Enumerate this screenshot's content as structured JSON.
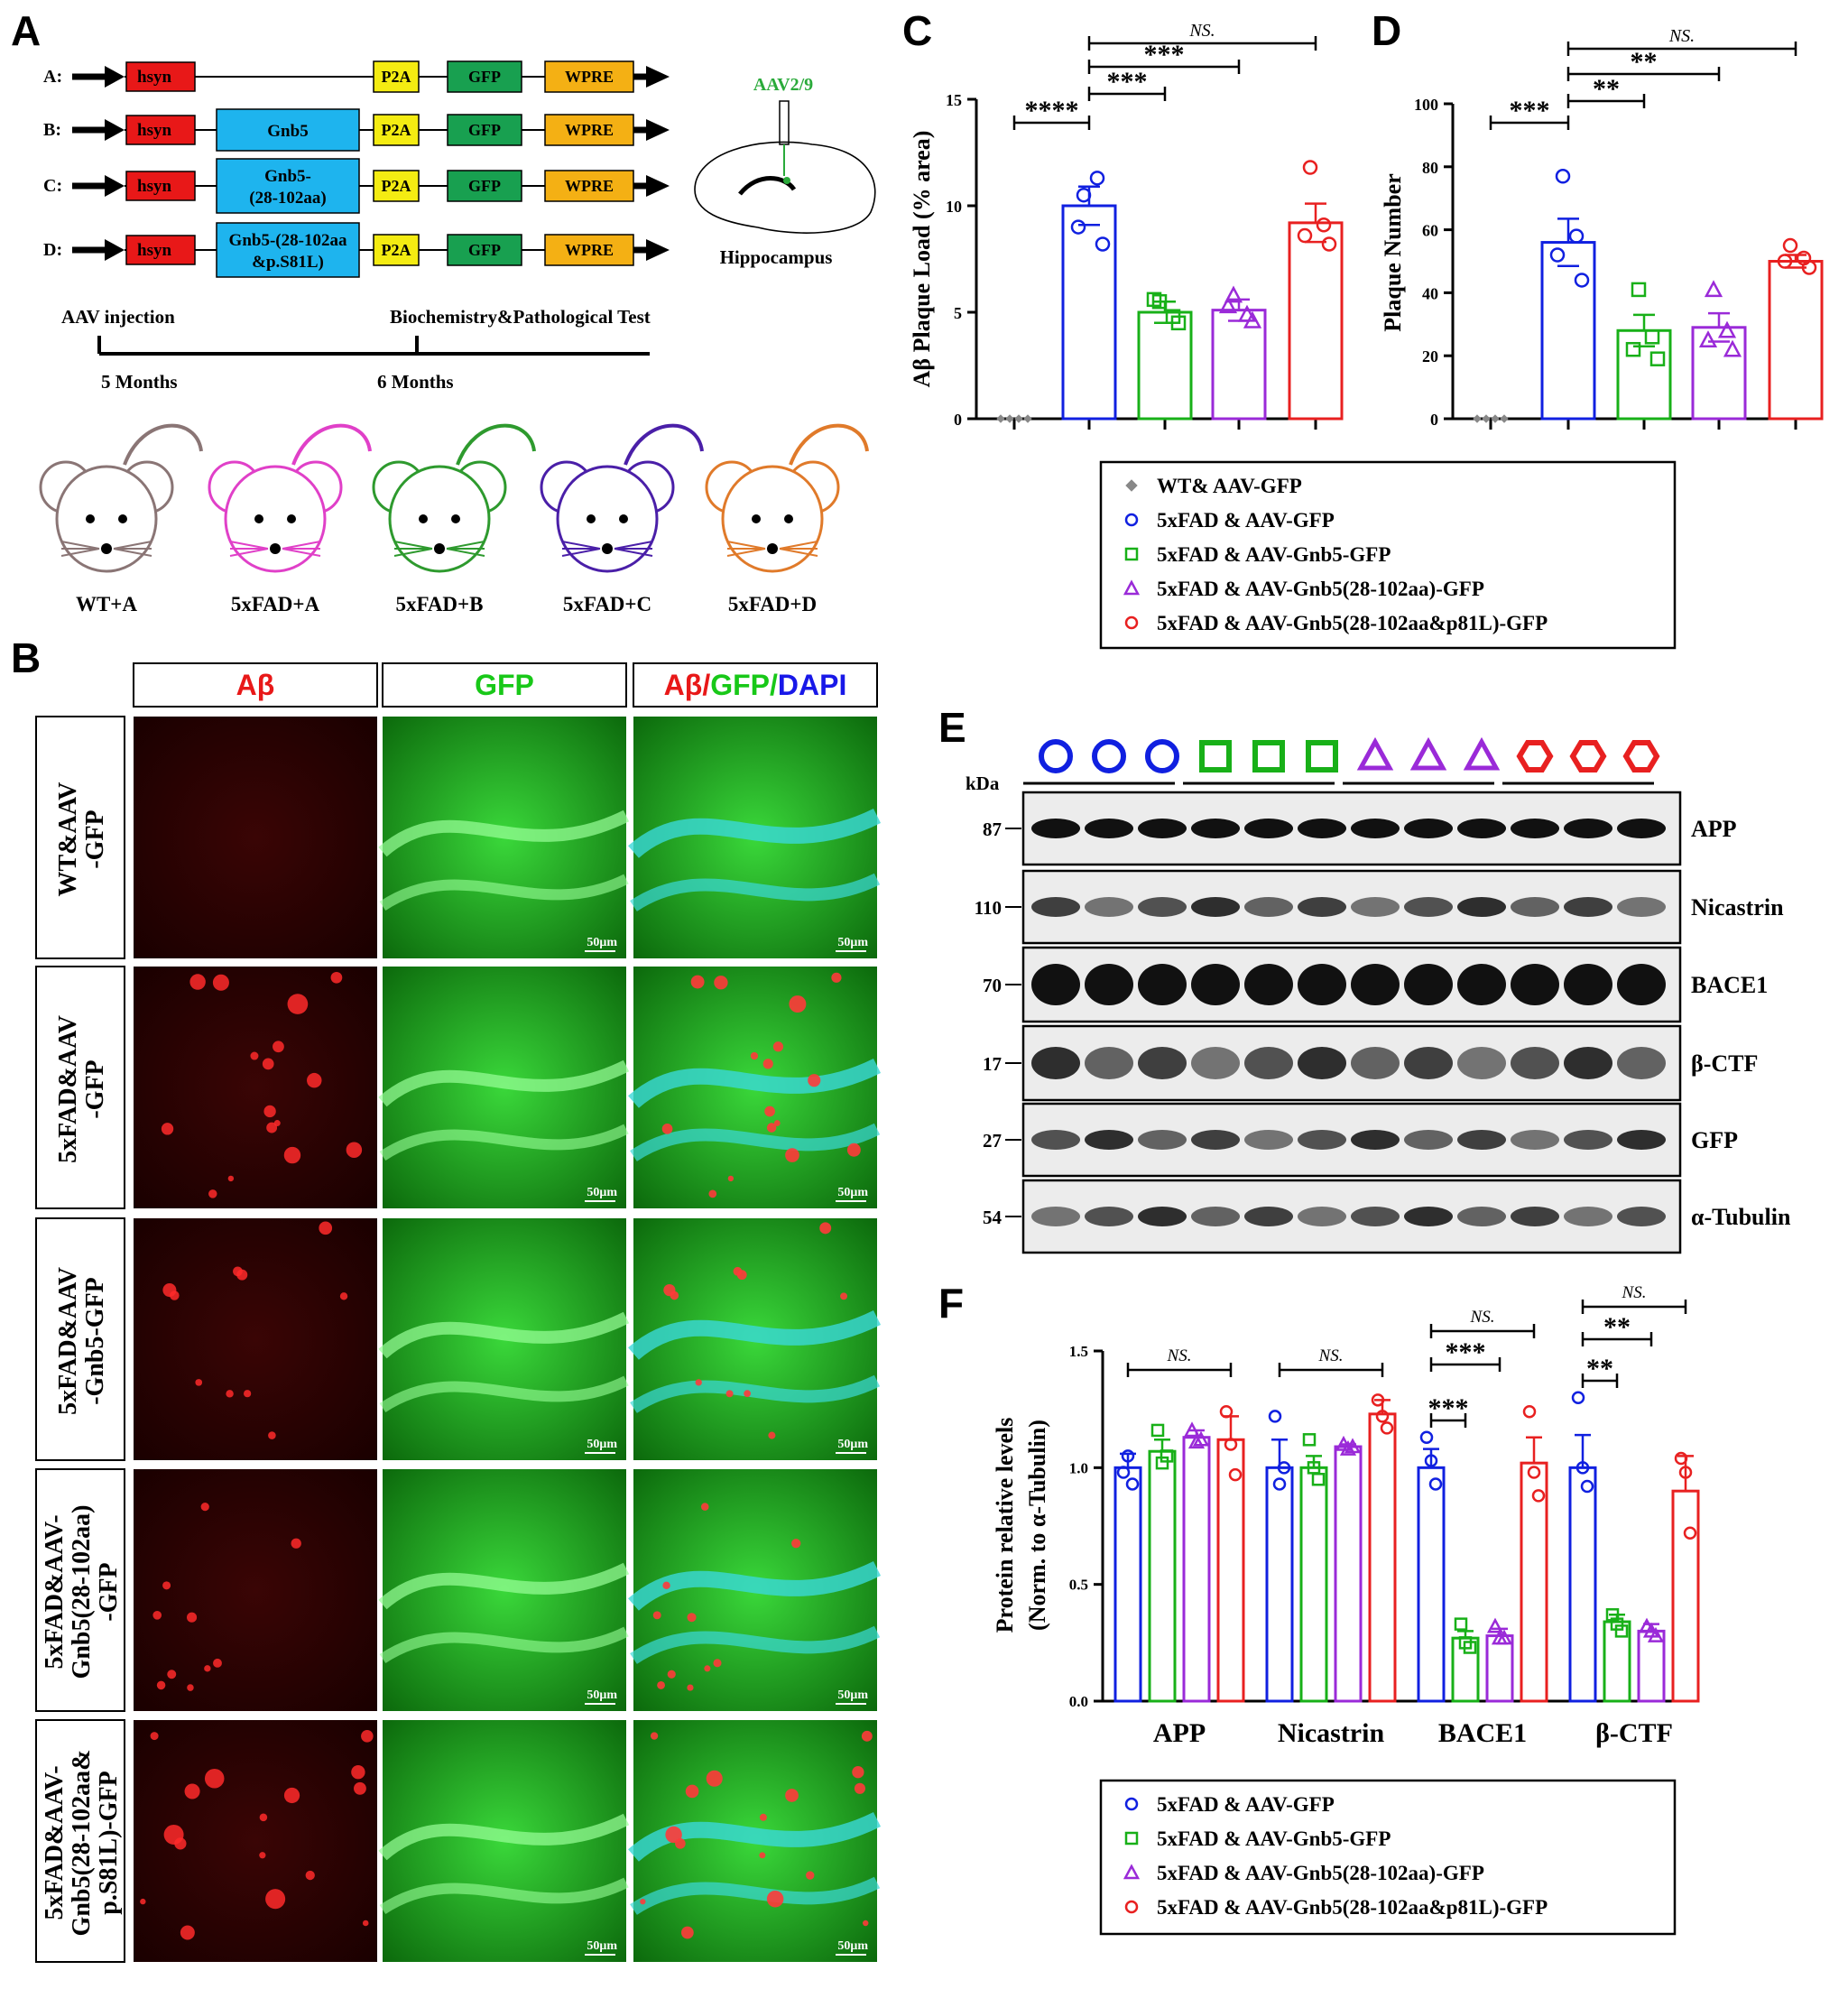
{
  "panels": {
    "A": "A",
    "B": "B",
    "C": "C",
    "D": "D",
    "E": "E",
    "F": "F"
  },
  "constructs": [
    {
      "label": "A:",
      "insert": "",
      "p2a": "P2A",
      "gfp": "GFP",
      "wpre": "WPRE",
      "hsyn": "hsyn"
    },
    {
      "label": "B:",
      "insert": "Gnb5",
      "p2a": "P2A",
      "gfp": "GFP",
      "wpre": "WPRE",
      "hsyn": "hsyn"
    },
    {
      "label": "C:",
      "insert": "Gnb5-\n(28-102aa)",
      "p2a": "P2A",
      "gfp": "GFP",
      "wpre": "WPRE",
      "hsyn": "hsyn"
    },
    {
      "label": "D:",
      "insert": "Gnb5-(28-102aa\n&p.S81L)",
      "p2a": "P2A",
      "gfp": "GFP",
      "wpre": "WPRE",
      "hsyn": "hsyn"
    }
  ],
  "aav_label": "AAV2/9",
  "hippocampus_label": "Hippocampus",
  "timeline": {
    "start": "AAV injection",
    "end": "Biochemistry&Pathological Test",
    "t1": "5 Months",
    "t2": "6 Months"
  },
  "mice": [
    {
      "label": "WT+A",
      "color": "#8a7575"
    },
    {
      "label": "5xFAD+A",
      "color": "#e040c8"
    },
    {
      "label": "5xFAD+B",
      "color": "#2e9a2e"
    },
    {
      "label": "5xFAD+C",
      "color": "#4a1fa8"
    },
    {
      "label": "5xFAD+D",
      "color": "#e07a2a"
    }
  ],
  "micro": {
    "col_headers": [
      "Aβ",
      "GFP",
      "Aβ/GFP/DAPI"
    ],
    "row_labels": [
      "WT&AAV\n-GFP",
      "5xFAD&AAV\n-GFP",
      "5xFAD&AAV\n-Gnb5-GFP",
      "5xFAD&AAV-\nGnb5(28-102aa)\n-GFP",
      "5xFAD&AAV-\nGnb5(28-102aa&\np.S81L)-GFP"
    ],
    "scale_bar": "50μm"
  },
  "legend_c": [
    {
      "text": "WT& AAV-GFP",
      "marker": "diamond",
      "color": "#888888"
    },
    {
      "text": "5xFAD & AAV-GFP",
      "marker": "circle",
      "color": "#1020e0"
    },
    {
      "text": "5xFAD & AAV-Gnb5-GFP",
      "marker": "square",
      "color": "#18b018"
    },
    {
      "text": "5xFAD & AAV-Gnb5(28-102aa)-GFP",
      "marker": "triangle",
      "color": "#9a2ad8"
    },
    {
      "text": "5xFAD & AAV-Gnb5(28-102aa&p81L)-GFP",
      "marker": "circle",
      "color": "#e82020"
    }
  ],
  "legend_f": [
    {
      "text": "5xFAD & AAV-GFP",
      "marker": "circle",
      "color": "#1020e0"
    },
    {
      "text": "5xFAD & AAV-Gnb5-GFP",
      "marker": "square",
      "color": "#18b018"
    },
    {
      "text": "5xFAD & AAV-Gnb5(28-102aa)-GFP",
      "marker": "triangle",
      "color": "#9a2ad8"
    },
    {
      "text": "5xFAD & AAV-Gnb5(28-102aa&p81L)-GFP",
      "marker": "circle",
      "color": "#e82020"
    }
  ],
  "western": {
    "kda_label": "kDa",
    "rows": [
      {
        "kda": "87",
        "name": "APP"
      },
      {
        "kda": "110",
        "name": "Nicastrin"
      },
      {
        "kda": "70",
        "name": "BACE1"
      },
      {
        "kda": "17",
        "name": "β-CTF"
      },
      {
        "kda": "27",
        "name": "GFP"
      },
      {
        "kda": "54",
        "name": "α-Tubulin"
      }
    ]
  },
  "chart_data": [
    {
      "id": "C",
      "type": "bar",
      "ylabel": "Aβ Plaque Load (% area)",
      "ylim": [
        0,
        15
      ],
      "yticks": [
        "0",
        "5",
        "10",
        "15"
      ],
      "colors": [
        "#888888",
        "#1020e0",
        "#18b018",
        "#9a2ad8",
        "#e82020"
      ],
      "values": [
        0,
        10,
        5,
        5.1,
        9.2
      ],
      "errors": [
        0,
        0.9,
        0.5,
        0.5,
        0.9
      ],
      "points": [
        [
          0,
          0,
          0,
          0
        ],
        [
          10.5,
          11.3,
          9.0,
          8.2
        ],
        [
          5.5,
          4.8,
          5.6,
          4.5
        ],
        [
          5.8,
          4.9,
          5.3,
          4.6
        ],
        [
          11.8,
          9.1,
          8.6,
          8.2
        ]
      ],
      "sig": [
        {
          "a": 0,
          "b": 1,
          "text": "****"
        },
        {
          "a": 1,
          "b": 2,
          "text": "***"
        },
        {
          "a": 1,
          "b": 3,
          "text": "***"
        },
        {
          "a": 1,
          "b": 4,
          "text": "NS."
        }
      ]
    },
    {
      "id": "D",
      "type": "bar",
      "ylabel": "Plaque Number",
      "ylim": [
        0,
        100
      ],
      "yticks": [
        "0",
        "20",
        "40",
        "60",
        "80",
        "100"
      ],
      "colors": [
        "#888888",
        "#1020e0",
        "#18b018",
        "#9a2ad8",
        "#e82020"
      ],
      "values": [
        0,
        56,
        28,
        29,
        50
      ],
      "errors": [
        0,
        7.5,
        5,
        4.5,
        2
      ],
      "points": [
        [
          0,
          0,
          0,
          0
        ],
        [
          77,
          58,
          52,
          44
        ],
        [
          41,
          26,
          22,
          19
        ],
        [
          41,
          28,
          25,
          22
        ],
        [
          55,
          51,
          50,
          48
        ]
      ],
      "sig": [
        {
          "a": 0,
          "b": 1,
          "text": "***"
        },
        {
          "a": 1,
          "b": 2,
          "text": "**"
        },
        {
          "a": 1,
          "b": 3,
          "text": "**"
        },
        {
          "a": 1,
          "b": 4,
          "text": "NS."
        }
      ]
    },
    {
      "id": "F",
      "type": "bar",
      "ylabel": "Protein relative levels",
      "ylabel2": "(Norm. to α-Tubulin)",
      "ylim": [
        0,
        1.5
      ],
      "yticks": [
        "0.0",
        "0.5",
        "1.0",
        "1.5"
      ],
      "categories": [
        "APP",
        "Nicastrin",
        "BACE1",
        "β-CTF"
      ],
      "colors": [
        "#1020e0",
        "#18b018",
        "#9a2ad8",
        "#e82020"
      ],
      "values": [
        [
          1.0,
          1.07,
          1.13,
          1.12
        ],
        [
          1.0,
          1.0,
          1.09,
          1.23
        ],
        [
          1.0,
          0.27,
          0.28,
          1.02
        ],
        [
          1.0,
          0.34,
          0.3,
          0.9
        ]
      ],
      "errors": [
        [
          0.06,
          0.05,
          0.03,
          0.1
        ],
        [
          0.12,
          0.05,
          0.01,
          0.06
        ],
        [
          0.08,
          0.03,
          0.03,
          0.11
        ],
        [
          0.14,
          0.03,
          0.03,
          0.15
        ]
      ],
      "points": [
        [
          [
            0.98,
            1.05,
            0.93
          ],
          [
            1.16,
            1.02,
            1.05
          ],
          [
            1.16,
            1.11,
            1.12
          ],
          [
            1.24,
            1.1,
            0.97
          ]
        ],
        [
          [
            1.22,
            0.93,
            1.0
          ],
          [
            1.12,
            1.0,
            0.95
          ],
          [
            1.1,
            1.08,
            1.09
          ],
          [
            1.29,
            1.22,
            1.17
          ]
        ],
        [
          [
            1.13,
            1.03,
            0.93
          ],
          [
            0.33,
            0.25,
            0.23
          ],
          [
            0.32,
            0.27,
            0.27
          ],
          [
            1.24,
            0.98,
            0.88
          ]
        ],
        [
          [
            1.3,
            1.0,
            0.92
          ],
          [
            0.37,
            0.33,
            0.3
          ],
          [
            0.32,
            0.3,
            0.28
          ],
          [
            1.04,
            0.98,
            0.72
          ]
        ]
      ],
      "sig": [
        {
          "group": 0,
          "a": 0,
          "b": 3,
          "text": "NS."
        },
        {
          "group": 1,
          "a": 0,
          "b": 3,
          "text": "NS."
        },
        {
          "group": 2,
          "a": 0,
          "b": 1,
          "text": "***"
        },
        {
          "group": 2,
          "a": 0,
          "b": 2,
          "text": "***"
        },
        {
          "group": 2,
          "a": 0,
          "b": 3,
          "text": "NS."
        },
        {
          "group": 3,
          "a": 0,
          "b": 1,
          "text": "**"
        },
        {
          "group": 3,
          "a": 0,
          "b": 2,
          "text": "**"
        },
        {
          "group": 3,
          "a": 0,
          "b": 3,
          "text": "NS."
        }
      ]
    }
  ]
}
